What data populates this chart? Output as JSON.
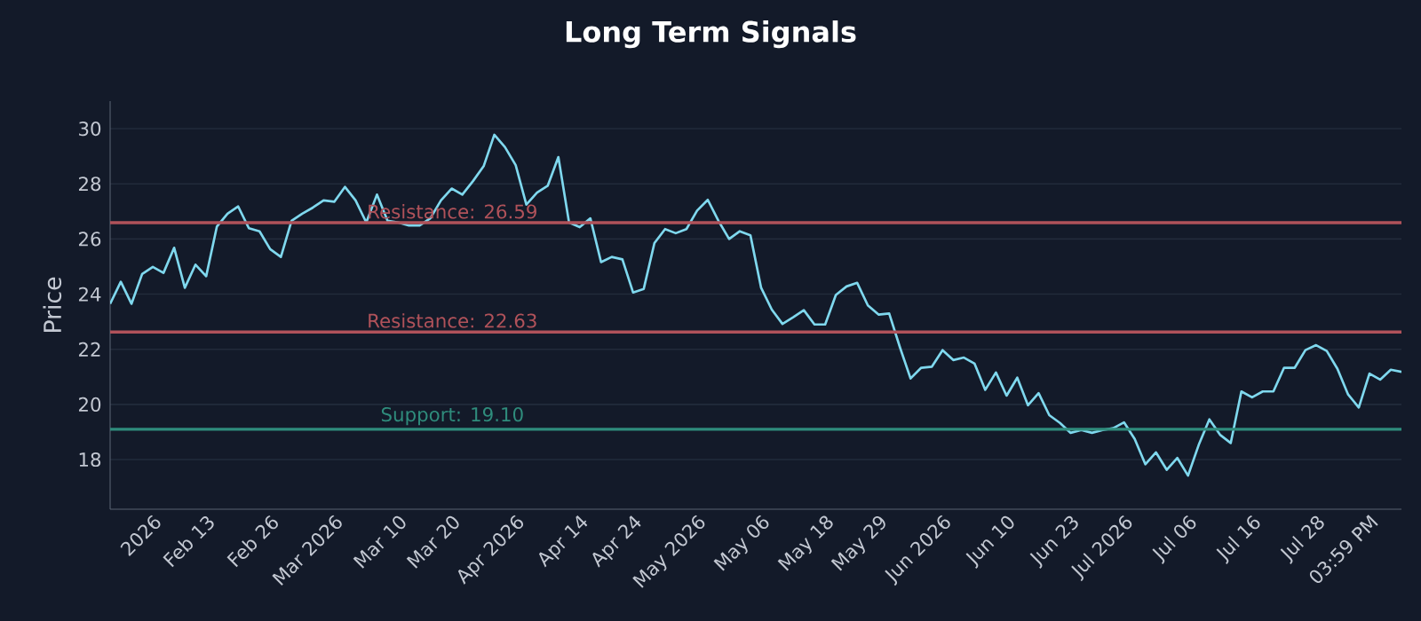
{
  "chart_data": {
    "type": "line",
    "title": "Long Term Signals",
    "ylabel": "Price",
    "categories": [
      null,
      null,
      null,
      null,
      "2026",
      null,
      null,
      null,
      null,
      "Feb 13",
      null,
      null,
      null,
      null,
      null,
      "Feb 26",
      null,
      null,
      null,
      null,
      null,
      "Mar 2026",
      null,
      null,
      null,
      null,
      null,
      "Mar 10",
      null,
      null,
      null,
      null,
      "Mar 20",
      null,
      null,
      null,
      null,
      null,
      "Apr 2026",
      null,
      null,
      null,
      null,
      null,
      "Apr 14",
      null,
      null,
      null,
      null,
      "Apr 24",
      null,
      null,
      null,
      null,
      null,
      "May 2026",
      null,
      null,
      null,
      null,
      null,
      "May 06",
      null,
      null,
      null,
      null,
      null,
      "May 18",
      null,
      null,
      null,
      null,
      "May 29",
      null,
      null,
      null,
      null,
      null,
      "Jun 2026",
      null,
      null,
      null,
      null,
      null,
      "Jun 10",
      null,
      null,
      null,
      null,
      null,
      "Jun 23",
      null,
      null,
      null,
      null,
      "Jul 2026",
      null,
      null,
      null,
      null,
      null,
      "Jul 06",
      null,
      null,
      null,
      null,
      null,
      "Jul 16",
      null,
      null,
      null,
      null,
      null,
      "Jul 28",
      null,
      null,
      null,
      null,
      "03:59 PM",
      null,
      null,
      null
    ],
    "ylim": [
      16.2,
      31
    ],
    "yticks": [
      18,
      20,
      22,
      24,
      26,
      28,
      30
    ],
    "grid": "y",
    "line_style": "solid",
    "series": [
      {
        "color": "#7fd8ee",
        "values": [
          23.65,
          24.45,
          23.65,
          24.73,
          24.99,
          24.77,
          25.68,
          24.23,
          25.07,
          24.65,
          26.45,
          26.92,
          27.18,
          26.39,
          26.28,
          25.63,
          25.35,
          26.66,
          26.92,
          27.14,
          27.4,
          27.35,
          27.89,
          27.4,
          26.6,
          27.61,
          26.66,
          26.6,
          26.49,
          26.49,
          26.75,
          27.4,
          27.83,
          27.61,
          28.1,
          28.64,
          29.78,
          29.33,
          28.68,
          27.25,
          27.68,
          27.93,
          28.97,
          26.6,
          26.43,
          26.75,
          25.16,
          25.35,
          25.26,
          24.06,
          24.19,
          25.85,
          26.36,
          26.21,
          26.36,
          27.03,
          27.42,
          26.66,
          26.0,
          26.28,
          26.13,
          24.23,
          23.44,
          22.92,
          23.16,
          23.42,
          22.9,
          22.9,
          23.97,
          24.28,
          24.41,
          23.59,
          23.26,
          23.3,
          22.08,
          20.94,
          21.33,
          21.37,
          21.97,
          21.61,
          21.7,
          21.48,
          20.53,
          21.16,
          20.32,
          20.97,
          19.97,
          20.41,
          19.61,
          19.33,
          18.97,
          19.07,
          18.97,
          19.07,
          19.14,
          19.35,
          18.75,
          17.83,
          18.26,
          17.63,
          18.06,
          17.42,
          18.53,
          19.46,
          18.9,
          18.6,
          20.47,
          20.26,
          20.47,
          20.47,
          21.33,
          21.33,
          21.97,
          22.15,
          21.94,
          21.29,
          20.36,
          19.89,
          21.12,
          20.9,
          21.26,
          21.18
        ]
      }
    ],
    "ref_lines": [
      {
        "axis": "y",
        "value": 26.59,
        "label": "Resistance: 26.59",
        "color": "#b0525a"
      },
      {
        "axis": "y",
        "value": 22.63,
        "label": "Resistance: 22.63",
        "color": "#b0525a"
      },
      {
        "axis": "y",
        "value": 19.1,
        "label": "Support: 19.10",
        "color": "#2f8c7c"
      }
    ]
  }
}
